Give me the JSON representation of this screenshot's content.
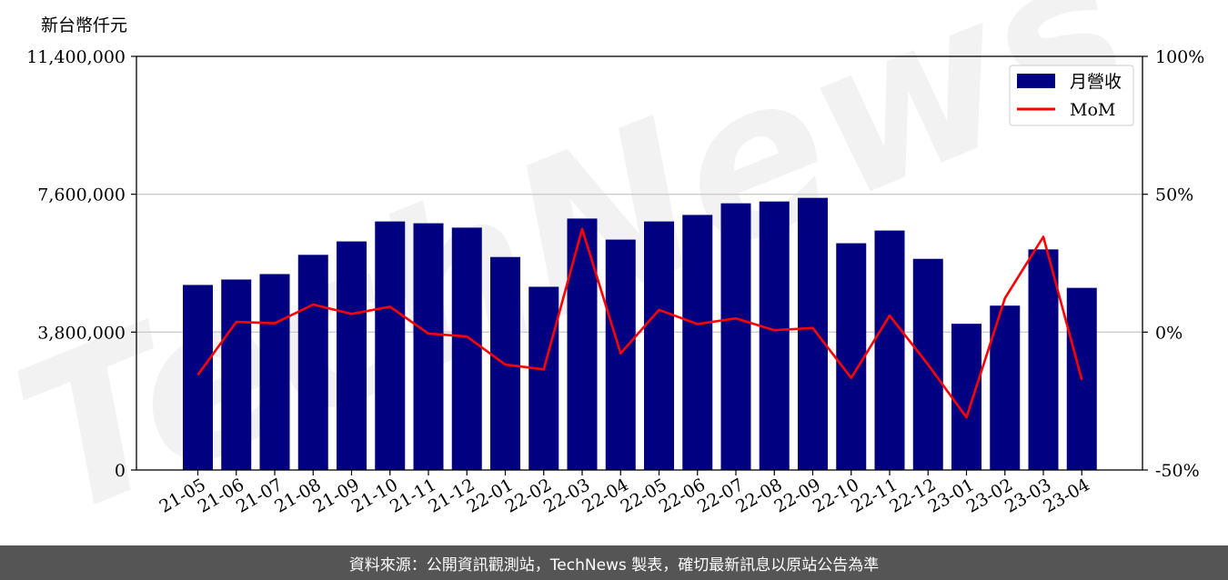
{
  "chart_data": {
    "type": "bar",
    "unit_label": "新台幣仟元",
    "categories": [
      "21-05",
      "21-06",
      "21-07",
      "21-08",
      "21-09",
      "21-10",
      "21-11",
      "21-12",
      "22-01",
      "22-02",
      "22-03",
      "22-04",
      "22-05",
      "22-06",
      "22-07",
      "22-08",
      "22-09",
      "22-10",
      "22-11",
      "22-12",
      "23-01",
      "23-02",
      "23-03",
      "23-04"
    ],
    "series": [
      {
        "name": "月營收",
        "type": "bar",
        "axis": "left",
        "color": "#000080",
        "values": [
          5100000,
          5250000,
          5400000,
          5930000,
          6300000,
          6850000,
          6800000,
          6680000,
          5870000,
          5050000,
          6930000,
          6350000,
          6850000,
          7030000,
          7350000,
          7400000,
          7500000,
          6250000,
          6600000,
          5820000,
          4030000,
          4530000,
          6080000,
          5020000
        ]
      },
      {
        "name": "MoM",
        "type": "line",
        "axis": "right",
        "color": "#ff0000",
        "values": [
          -15.5,
          3.7,
          3.2,
          10.0,
          6.6,
          9.2,
          -0.5,
          -1.6,
          -11.8,
          -13.5,
          37.4,
          -7.7,
          8.1,
          2.9,
          5.0,
          0.7,
          1.5,
          -16.6,
          6.0,
          -11.8,
          -30.9,
          12.3,
          34.6,
          -17.3
        ]
      }
    ],
    "ylim": [
      0,
      11400000
    ],
    "y_ticks": [
      0,
      3800000,
      7600000,
      11400000
    ],
    "y_tick_labels": [
      "0",
      "3,800,000",
      "7,600,000",
      "11,400,000"
    ],
    "y2lim": [
      -50,
      100
    ],
    "y2_ticks": [
      -50,
      0,
      50,
      100
    ],
    "y2_tick_labels": [
      "-50%",
      "0%",
      "50%",
      "100%"
    ],
    "grid": "horizontal",
    "legend_position": "top-right",
    "watermark": "TechNews"
  },
  "footer": {
    "text": "資料來源：公開資訊觀測站，TechNews 製表，確切最新訊息以原站公告為準"
  }
}
